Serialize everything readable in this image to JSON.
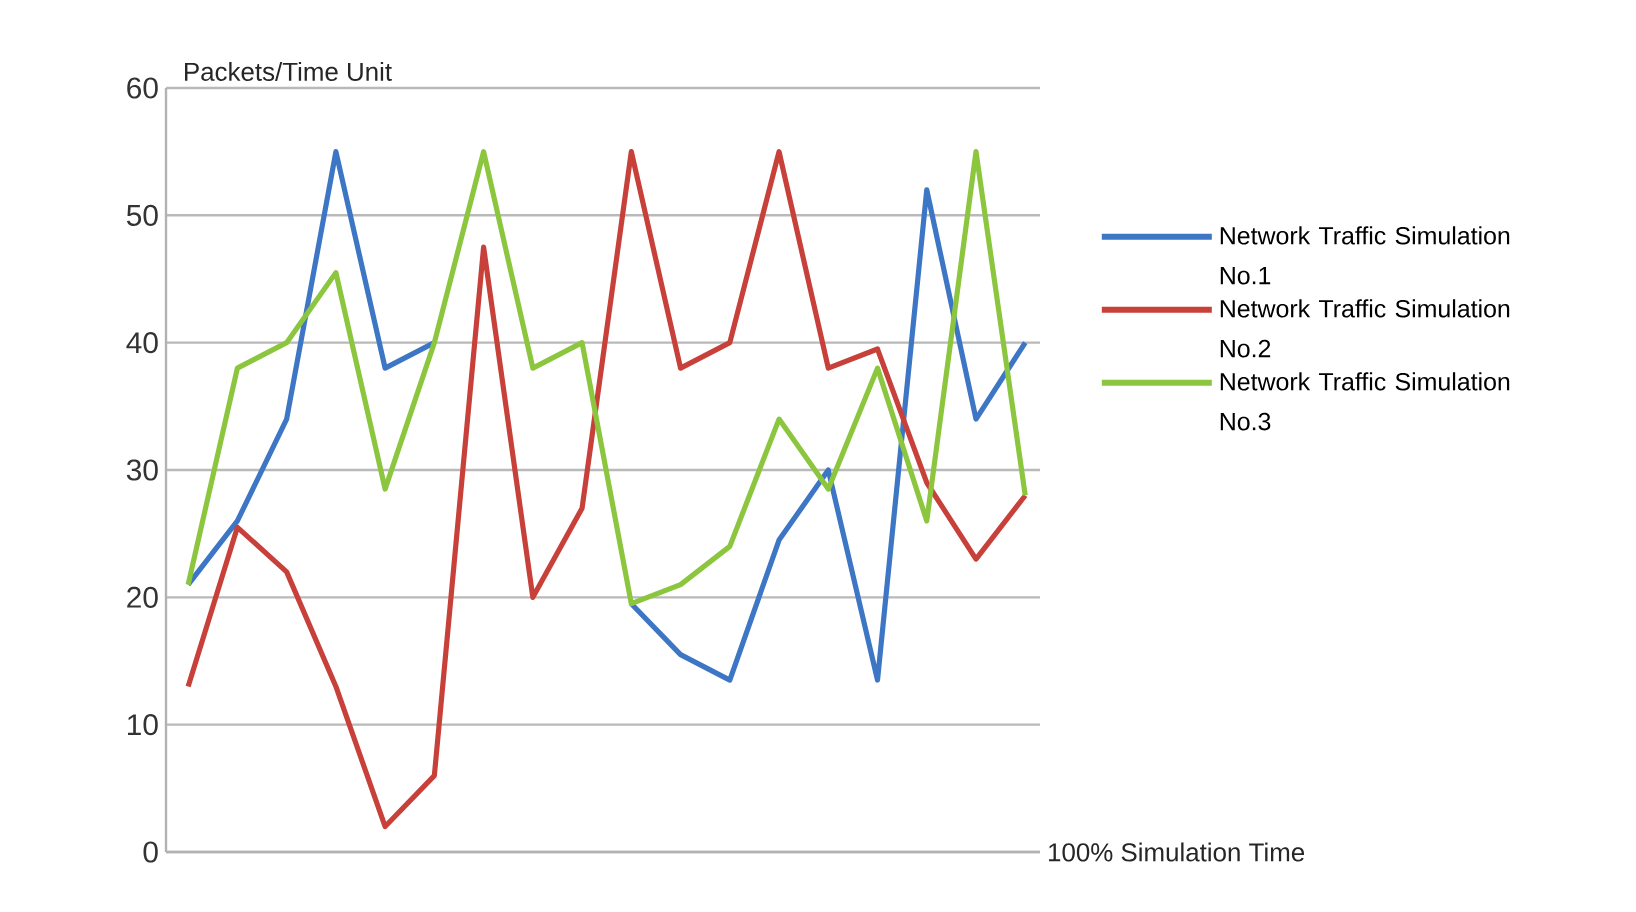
{
  "chart_data": {
    "type": "line",
    "xlabel": "100% Simulation Time",
    "ylabel": "Packets/Time Unit",
    "categories": [
      null,
      null,
      null,
      null,
      null,
      null,
      null,
      null,
      null,
      null,
      null,
      null,
      null,
      null,
      null,
      null,
      null,
      null
    ],
    "series": [
      {
        "name": "Network Traffic Simulation No.1",
        "color": "#3d76c4",
        "values": [
          21,
          26,
          34,
          55,
          38,
          40,
          null,
          null,
          null,
          19.5,
          15.5,
          13.5,
          24.5,
          30,
          13.5,
          52,
          34,
          40
        ]
      },
      {
        "name": "Network Traffic Simulation No.2",
        "color": "#c8403a",
        "values": [
          13,
          25.5,
          22,
          13,
          2,
          6,
          47.5,
          20,
          27,
          55,
          38,
          40,
          55,
          38,
          39.5,
          29,
          23,
          28
        ]
      },
      {
        "name": "Network Traffic Simulation No.3",
        "color": "#8cc63f",
        "values": [
          21,
          38,
          40,
          45.5,
          28.5,
          40,
          55,
          38,
          40,
          19.5,
          21,
          24,
          34,
          28.5,
          38,
          26,
          55,
          28
        ]
      }
    ],
    "ylim": [
      0,
      60
    ],
    "yticks": [
      0,
      10,
      20,
      30,
      40,
      50,
      60
    ],
    "grid": "y",
    "legend": "right",
    "marker": "none",
    "line_style": "solid"
  }
}
